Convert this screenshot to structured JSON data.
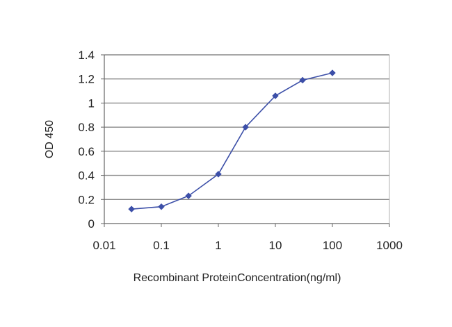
{
  "chart_data": {
    "type": "line",
    "title": "",
    "xlabel": "Recombinant ProteinConcentration(ng/ml)",
    "ylabel": "OD 450",
    "x_scale": "log",
    "xlim": [
      0.01,
      1000
    ],
    "ylim": [
      0,
      1.4
    ],
    "x_ticks": [
      "0.01",
      "0.1",
      "1",
      "10",
      "100",
      "1000"
    ],
    "y_ticks": [
      "0",
      "0.2",
      "0.4",
      "0.6",
      "0.8",
      "1",
      "1.2",
      "1.4"
    ],
    "grid": "horizontal",
    "legend": "none",
    "series": [
      {
        "color": "#3c4fa8",
        "marker": "diamond",
        "x": [
          0.03,
          0.1,
          0.3,
          1,
          3,
          10,
          30,
          100
        ],
        "y": [
          0.12,
          0.14,
          0.23,
          0.41,
          0.8,
          1.06,
          1.19,
          1.25
        ]
      }
    ]
  }
}
